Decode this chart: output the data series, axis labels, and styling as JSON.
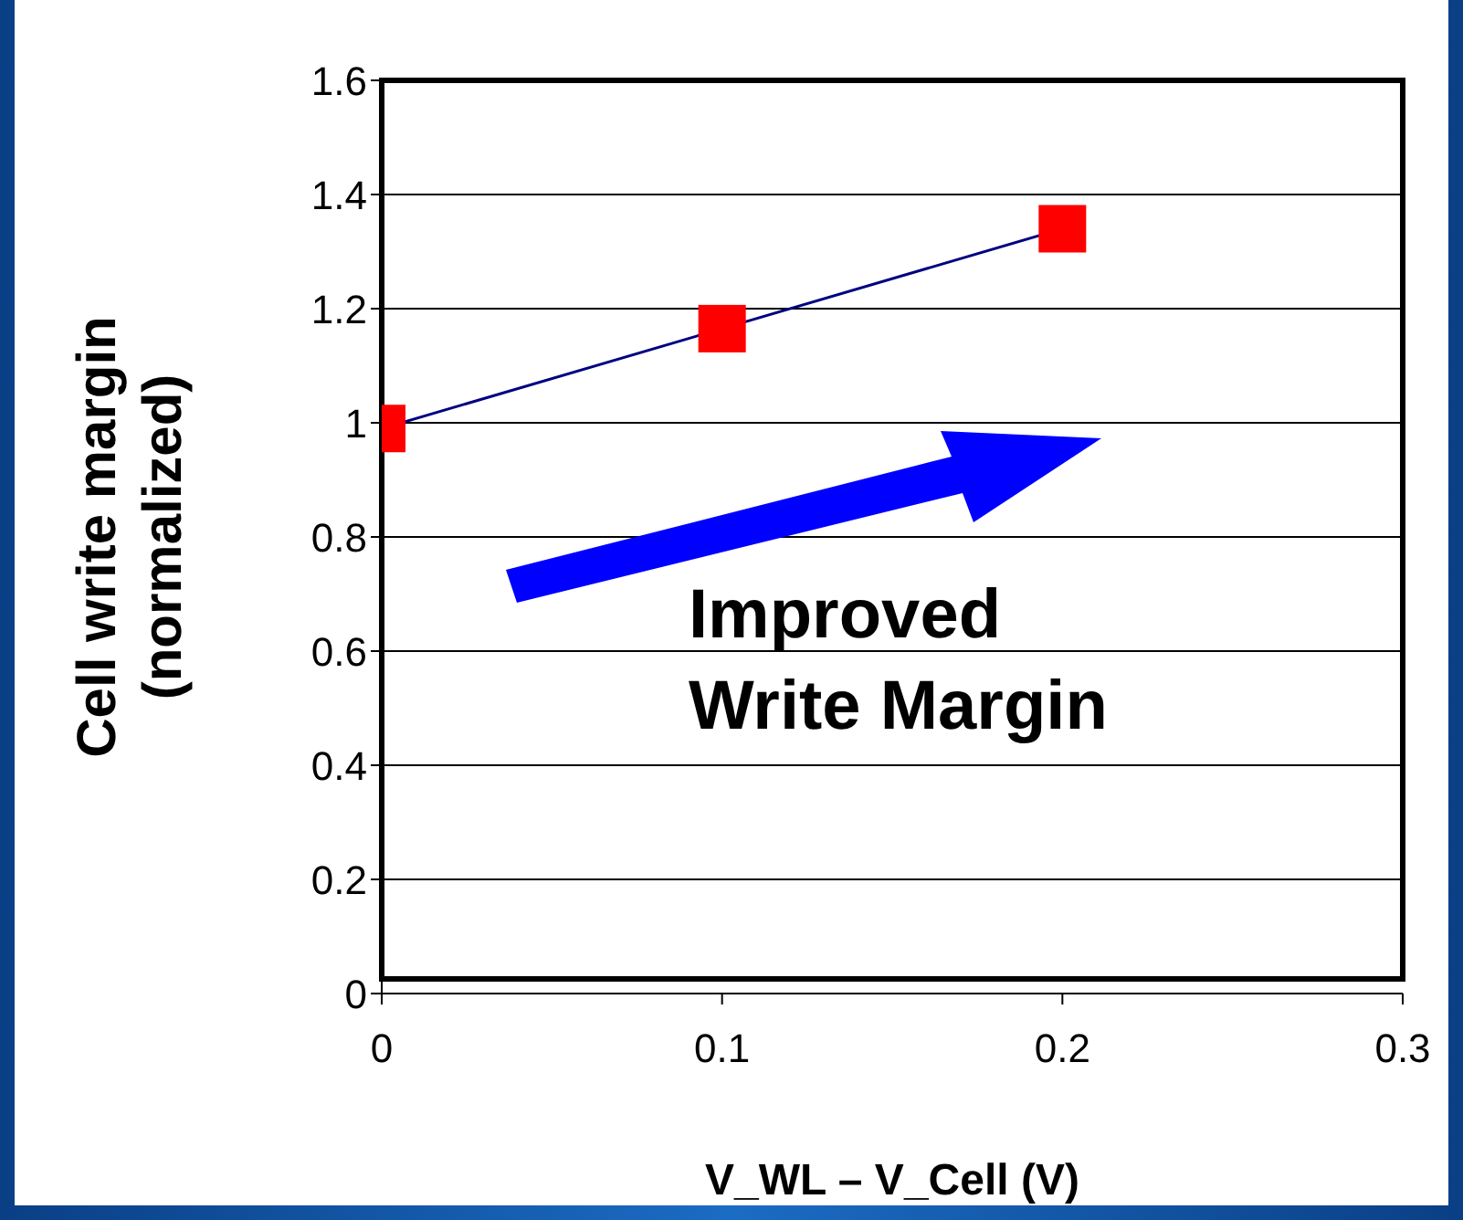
{
  "chart_data": {
    "type": "line",
    "xlabel": "V_WL – V_Cell  (V)",
    "ylabel": "Cell write margin\n(normalized)",
    "x": [
      0,
      0.1,
      0.2
    ],
    "series": [
      {
        "color": "#ff0000",
        "values": [
          0.99,
          1.165,
          1.34
        ]
      }
    ],
    "xlim": [
      0,
      0.3
    ],
    "xticks": [
      0,
      0.1,
      0.2,
      0.3
    ],
    "ylim": [
      0,
      1.6
    ],
    "yticks": [
      0,
      0.2,
      0.4,
      0.6,
      0.8,
      1,
      1.2,
      1.4,
      1.6
    ],
    "grid": "y",
    "marker": "square",
    "line_style": "solid",
    "annotations": [
      "Improved\nWrite Margin"
    ]
  }
}
